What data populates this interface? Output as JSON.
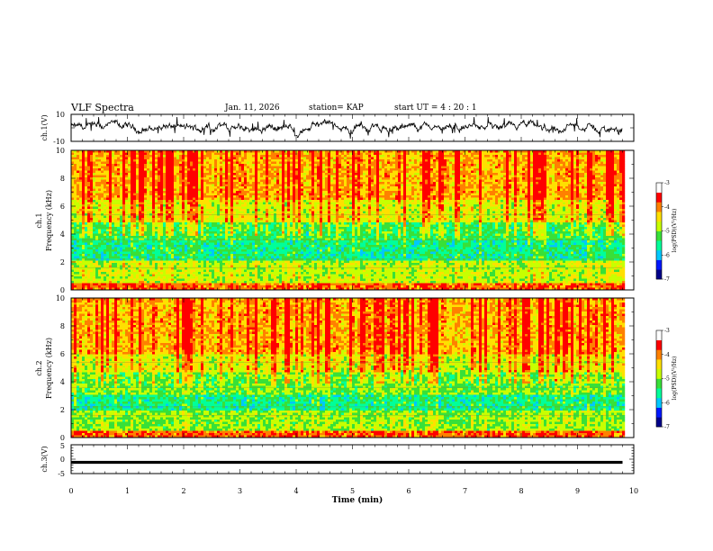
{
  "header": {
    "title": "VLF Spectra",
    "date": "Jan. 11, 2026",
    "station": "station= KAP",
    "start": "start UT =  4 : 20 : 1"
  },
  "x_axis": {
    "label": "Time (min)",
    "ticks": [
      "0",
      "1",
      "2",
      "3",
      "4",
      "5",
      "6",
      "7",
      "8",
      "9",
      "10"
    ]
  },
  "colors": {
    "map": [
      "#00008a",
      "#0018ff",
      "#00c8ff",
      "#00ff9a",
      "#38e038",
      "#c8ff00",
      "#ffe000",
      "#ff8000",
      "#ff0000",
      "#ffffff"
    ]
  },
  "chart_data": [
    {
      "type": "line",
      "name": "ch1-waveform",
      "ylabel": "ch.1(V)",
      "ylim": [
        -10,
        10
      ],
      "y_ticks": [
        "10",
        "-10"
      ],
      "x_range_min": [
        0,
        9.8
      ],
      "note": "broadband waveform fluctuating roughly between -5 and +5 V"
    },
    {
      "type": "heatmap",
      "name": "ch1-spectrogram",
      "ylabel": [
        "ch.1",
        "Frequency (kHz)"
      ],
      "ylim": [
        0,
        10
      ],
      "y_ticks": [
        "0",
        "2",
        "4",
        "6",
        "8",
        "10"
      ],
      "x_range_min": [
        0,
        9.8
      ],
      "colorbar": {
        "label": "log(PSD)(V²/Hz)",
        "range": [
          -7,
          -3
        ],
        "ticks": [
          "-3",
          "-4",
          "-5",
          "-6",
          "-7"
        ]
      },
      "bands_khz": [
        {
          "from": 0,
          "to": 0.6,
          "level": -3.6
        },
        {
          "from": 0.6,
          "to": 2.2,
          "level": -4.6
        },
        {
          "from": 2.2,
          "to": 3.6,
          "level": -5.4
        },
        {
          "from": 3.6,
          "to": 5.0,
          "level": -5.1
        },
        {
          "from": 5.0,
          "to": 6.5,
          "level": -4.4
        },
        {
          "from": 6.5,
          "to": 10,
          "level": -3.9
        }
      ]
    },
    {
      "type": "heatmap",
      "name": "ch2-spectrogram",
      "ylabel": [
        "ch.2",
        "Frequency (kHz)"
      ],
      "ylim": [
        0,
        10
      ],
      "y_ticks": [
        "0",
        "2",
        "4",
        "6",
        "8",
        "10"
      ],
      "x_range_min": [
        0,
        9.8
      ],
      "colorbar": {
        "label": "log(PSD)(V²/Hz)",
        "range": [
          -7,
          -3
        ],
        "ticks": [
          "-3",
          "-4",
          "-5",
          "-6",
          "-7"
        ]
      },
      "bands_khz": [
        {
          "from": 0,
          "to": 0.6,
          "level": -3.6
        },
        {
          "from": 0.6,
          "to": 2.0,
          "level": -4.8
        },
        {
          "from": 2.0,
          "to": 3.2,
          "level": -5.4
        },
        {
          "from": 3.2,
          "to": 4.7,
          "level": -4.9
        },
        {
          "from": 4.7,
          "to": 6.0,
          "level": -4.4
        },
        {
          "from": 6.0,
          "to": 10,
          "level": -3.9
        }
      ]
    },
    {
      "type": "line",
      "name": "ch3-waveform",
      "ylabel": "ch.3(V)",
      "ylim": [
        -5,
        5
      ],
      "y_ticks": [
        "5",
        "0",
        "-5"
      ],
      "x_range_min": [
        0,
        9.8
      ],
      "note": "near-constant thick band around -1 V"
    }
  ]
}
